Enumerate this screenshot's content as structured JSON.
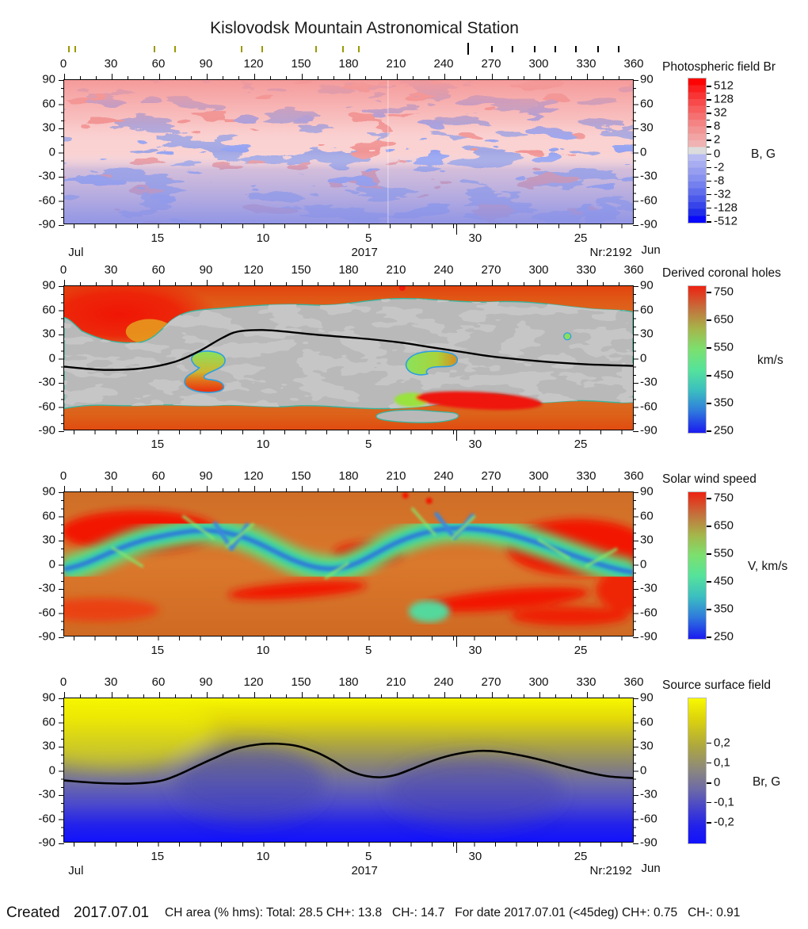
{
  "title": "Kislovodsk Mountain Astronomical Station",
  "axes": {
    "longitude_ticks": [
      "0",
      "30",
      "60",
      "90",
      "120",
      "150",
      "180",
      "210",
      "240",
      "270",
      "300",
      "330",
      "360"
    ],
    "latitude_ticks": [
      "90",
      "60",
      "30",
      "0",
      "-30",
      "-60",
      "-90"
    ],
    "date_ticks": [
      {
        "label": "15",
        "f": 0.165
      },
      {
        "label": "10",
        "f": 0.35
      },
      {
        "label": "5",
        "f": 0.535
      },
      {
        "label": "30",
        "f": 0.722
      },
      {
        "label": "25",
        "f": 0.907
      }
    ],
    "month_boundary_f": 0.69,
    "month_left": "Jul",
    "year_center": "2017",
    "rotation_number": "Nr:2192",
    "month_right": "Jun",
    "marker_ticks": [
      {
        "lon": 3,
        "color": "#9a9a00",
        "tall": false
      },
      {
        "lon": 7,
        "color": "#9a9a00",
        "tall": false
      },
      {
        "lon": 57,
        "color": "#9a9a00",
        "tall": false
      },
      {
        "lon": 70,
        "color": "#9a9a00",
        "tall": false
      },
      {
        "lon": 112,
        "color": "#9a9a00",
        "tall": false
      },
      {
        "lon": 125,
        "color": "#9a9a00",
        "tall": false
      },
      {
        "lon": 159,
        "color": "#9a9a00",
        "tall": false
      },
      {
        "lon": 176,
        "color": "#9a9a00",
        "tall": false
      },
      {
        "lon": 186,
        "color": "#9a9a00",
        "tall": false
      },
      {
        "lon": 255,
        "color": "#000000",
        "tall": true
      },
      {
        "lon": 270,
        "color": "#000000",
        "tall": false
      },
      {
        "lon": 283,
        "color": "#000000",
        "tall": false
      },
      {
        "lon": 297,
        "color": "#000000",
        "tall": false
      },
      {
        "lon": 310,
        "color": "#000000",
        "tall": false
      },
      {
        "lon": 323,
        "color": "#000000",
        "tall": false
      },
      {
        "lon": 337,
        "color": "#000000",
        "tall": false
      },
      {
        "lon": 350,
        "color": "#000000",
        "tall": false
      }
    ]
  },
  "panels": [
    {
      "title": "Photospheric field Br",
      "unit": "B, G",
      "colorbar": {
        "minor": true,
        "ticks": [
          {
            "label": "512",
            "f": 0.055
          },
          {
            "label": "128",
            "f": 0.149
          },
          {
            "label": "32",
            "f": 0.243
          },
          {
            "label": "8",
            "f": 0.337
          },
          {
            "label": "2",
            "f": 0.431
          },
          {
            "label": "0",
            "f": 0.525
          },
          {
            "label": "-2",
            "f": 0.619
          },
          {
            "label": "-8",
            "f": 0.713
          },
          {
            "label": "-32",
            "f": 0.807
          },
          {
            "label": "-128",
            "f": 0.901
          },
          {
            "label": "-512",
            "f": 0.995
          }
        ]
      }
    },
    {
      "title": "Derived coronal holes",
      "unit": "km/s",
      "colorbar": {
        "minor": false,
        "ticks": [
          {
            "label": "750",
            "f": 0.045
          },
          {
            "label": "650",
            "f": 0.234
          },
          {
            "label": "550",
            "f": 0.423
          },
          {
            "label": "450",
            "f": 0.612
          },
          {
            "label": "350",
            "f": 0.801
          },
          {
            "label": "250",
            "f": 0.99
          }
        ]
      }
    },
    {
      "title": "Solar wind speed",
      "unit": "V, km/s",
      "colorbar": {
        "minor": false,
        "ticks": [
          {
            "label": "750",
            "f": 0.045
          },
          {
            "label": "650",
            "f": 0.234
          },
          {
            "label": "550",
            "f": 0.423
          },
          {
            "label": "450",
            "f": 0.612
          },
          {
            "label": "350",
            "f": 0.801
          },
          {
            "label": "250",
            "f": 0.99
          }
        ]
      }
    },
    {
      "title": "Source surface field",
      "unit": "Br, G",
      "colorbar": {
        "minor": false,
        "ticks": [
          {
            "label": "0,2",
            "f": 0.311
          },
          {
            "label": "0,1",
            "f": 0.448
          },
          {
            "label": "0",
            "f": 0.585
          },
          {
            "label": "-0,1",
            "f": 0.721
          },
          {
            "label": "-0,2",
            "f": 0.858
          }
        ]
      }
    }
  ],
  "footer": {
    "created_label": "Created",
    "created_date": "2017.07.01",
    "stats": "CH area (% hms): Total: 28.5 CH+: 13.8   CH-: 14.7   For date 2017.07.01 (<45deg) CH+: 0.75   CH-: 0.91"
  },
  "chart_data": [
    {
      "type": "heatmap",
      "title": "Photospheric field Br",
      "x": {
        "range": [
          0,
          360
        ],
        "ticks": [
          0,
          30,
          60,
          90,
          120,
          150,
          180,
          210,
          240,
          270,
          300,
          330,
          360
        ]
      },
      "y": {
        "range": [
          -90,
          90
        ],
        "ticks": [
          90,
          60,
          30,
          0,
          -30,
          -60,
          -90
        ]
      },
      "secondary_x_dates": {
        "ticks": [
          15,
          10,
          5,
          30,
          25
        ],
        "month_left": "Jul",
        "month_right": "Jun",
        "year": 2017,
        "carrington_rotation": 2192
      },
      "colorbar": {
        "label": "B, G",
        "scale": "symmetric-log",
        "ticks": [
          512,
          128,
          32,
          8,
          2,
          0,
          -2,
          -8,
          -32,
          -128,
          -512
        ],
        "palette": [
          "#fc0404",
          "#dcdcdc",
          "#0808fd"
        ]
      },
      "description": "Mottled synoptic map of radial photospheric magnetic field: positive field pink/red patches, negative field blue/violet patches, strong bipolar active regions near latitudes 0..30 at longitudes ~100-130, ~150-175, ~230-250, ~290-310; vertical data seam near longitude 205; southern hemisphere predominantly negative."
    },
    {
      "type": "heatmap",
      "title": "Derived coronal holes",
      "x": {
        "range": [
          0,
          360
        ],
        "ticks": [
          0,
          30,
          60,
          90,
          120,
          150,
          180,
          210,
          240,
          270,
          300,
          330,
          360
        ]
      },
      "y": {
        "range": [
          -90,
          90
        ],
        "ticks": [
          90,
          60,
          30,
          0,
          -30,
          -60,
          -90
        ]
      },
      "colorbar": {
        "label": "km/s",
        "ticks": [
          750,
          650,
          550,
          450,
          350,
          250
        ],
        "palette": [
          "#ee2211",
          "#c4703c",
          "#7ce06e",
          "#3bbfc0",
          "#1a1af0"
        ]
      },
      "neutral_line": [
        [
          0,
          -11
        ],
        [
          25,
          -15
        ],
        [
          50,
          -13
        ],
        [
          70,
          -5
        ],
        [
          85,
          8
        ],
        [
          100,
          25
        ],
        [
          110,
          33
        ],
        [
          125,
          35
        ],
        [
          140,
          33
        ],
        [
          160,
          29
        ],
        [
          185,
          25
        ],
        [
          210,
          20
        ],
        [
          230,
          14
        ],
        [
          250,
          8
        ],
        [
          270,
          2
        ],
        [
          300,
          -4
        ],
        [
          330,
          -8
        ],
        [
          360,
          -10
        ]
      ],
      "description": "Gray area = closed-field region with darker gray patches; red/orange polar caps = polar coronal holes colored by predicted wind speed; isolated low-latitude coronal holes (cyan-outlined, green/orange/red) near longitudes 115-135 lat -5 and 215-250 lat 0; red equatorward extension near longitude 255 lat -55; black curve = magnetic neutral line."
    },
    {
      "type": "heatmap",
      "title": "Solar wind speed",
      "x": {
        "range": [
          0,
          360
        ],
        "ticks": [
          0,
          30,
          60,
          90,
          120,
          150,
          180,
          210,
          240,
          270,
          300,
          330,
          360
        ]
      },
      "y": {
        "range": [
          -90,
          90
        ],
        "ticks": [
          90,
          60,
          30,
          0,
          -30,
          -60,
          -90
        ]
      },
      "colorbar": {
        "label": "V, km/s",
        "ticks": [
          750,
          650,
          550,
          450,
          350,
          250
        ],
        "palette": [
          "#ee2211",
          "#c4703c",
          "#7ce06e",
          "#3bbfc0",
          "#1a1af0"
        ]
      },
      "streamer_belt_centerline": [
        [
          0,
          -8
        ],
        [
          20,
          2
        ],
        [
          40,
          15
        ],
        [
          55,
          25
        ],
        [
          75,
          30
        ],
        [
          95,
          22
        ],
        [
          115,
          10
        ],
        [
          135,
          0
        ],
        [
          150,
          -6
        ],
        [
          165,
          -2
        ],
        [
          180,
          8
        ],
        [
          195,
          18
        ],
        [
          210,
          26
        ],
        [
          225,
          30
        ],
        [
          245,
          28
        ],
        [
          260,
          22
        ],
        [
          280,
          12
        ],
        [
          300,
          2
        ],
        [
          320,
          -6
        ],
        [
          340,
          -10
        ],
        [
          360,
          -12
        ]
      ],
      "description": "Smooth map of predicted solar wind speed: fast wind (orange/red ~650-750 km/s) at high latitudes and in red patches near longitudes 0-60 lat 40-60, 120-180 lat -25, 210-300 lat -25, 290-360 lat 20-50; slow wind (green/cyan/blue ~250-450 km/s) along the sinuous streamer belt."
    },
    {
      "type": "heatmap",
      "title": "Source surface field",
      "x": {
        "range": [
          0,
          360
        ],
        "ticks": [
          0,
          30,
          60,
          90,
          120,
          150,
          180,
          210,
          240,
          270,
          300,
          330,
          360
        ]
      },
      "y": {
        "range": [
          -90,
          90
        ],
        "ticks": [
          90,
          60,
          30,
          0,
          -30,
          -60,
          -90
        ]
      },
      "colorbar": {
        "label": "Br, G",
        "ticks": [
          0.2,
          0.1,
          0,
          -0.1,
          -0.2
        ],
        "palette": [
          "#f8f800",
          "#8a8680",
          "#1212fc"
        ]
      },
      "neutral_line": [
        [
          0,
          -13
        ],
        [
          20,
          -16
        ],
        [
          42,
          -17
        ],
        [
          60,
          -14
        ],
        [
          72,
          -6
        ],
        [
          85,
          6
        ],
        [
          95,
          15
        ],
        [
          108,
          26
        ],
        [
          122,
          32
        ],
        [
          135,
          33
        ],
        [
          148,
          30
        ],
        [
          160,
          22
        ],
        [
          170,
          12
        ],
        [
          180,
          0
        ],
        [
          190,
          -7
        ],
        [
          200,
          -9
        ],
        [
          210,
          -6
        ],
        [
          222,
          3
        ],
        [
          235,
          13
        ],
        [
          248,
          20
        ],
        [
          262,
          24
        ],
        [
          275,
          23
        ],
        [
          290,
          18
        ],
        [
          305,
          11
        ],
        [
          318,
          4
        ],
        [
          332,
          -3
        ],
        [
          345,
          -8
        ],
        [
          360,
          -10
        ]
      ],
      "description": "Smooth source-surface radial field: positive (yellow) in the north, negative (blue) in the south, gray transition along the black neutral line with two northward humps near longitudes 95-135 and 225-275."
    }
  ]
}
